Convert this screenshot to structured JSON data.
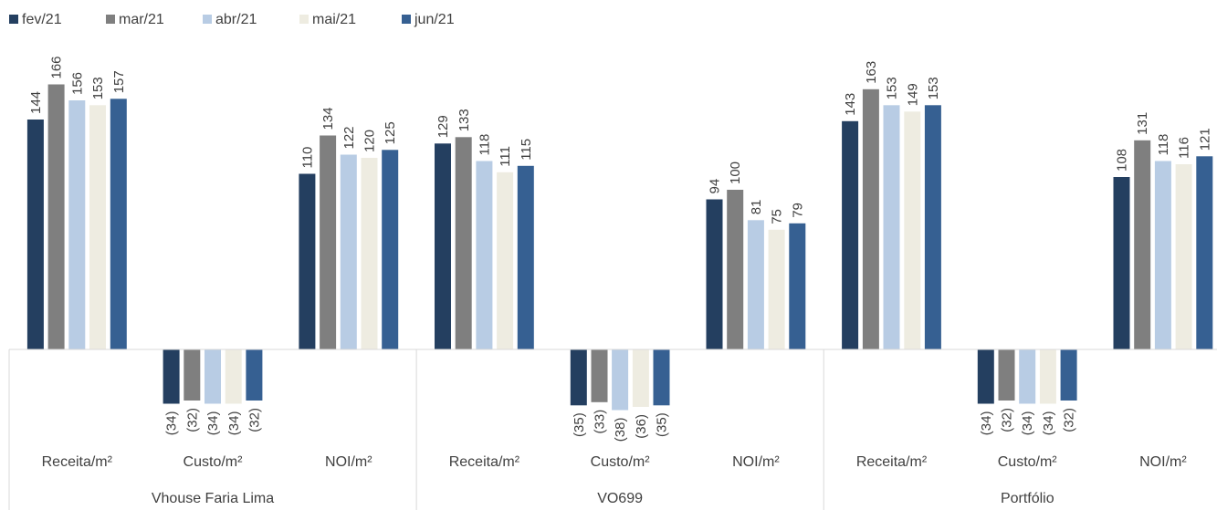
{
  "chart_data": {
    "type": "bar",
    "title": "",
    "xlabel": "",
    "ylabel": "",
    "legend_position": "top-left",
    "grid": false,
    "ylim": [
      -45,
      175
    ],
    "groups": [
      {
        "name": "Vhouse Faria Lima",
        "categories": [
          "Receita/m²",
          "Custo/m²",
          "NOI/m²"
        ]
      },
      {
        "name": "VO699",
        "categories": [
          "Receita/m²",
          "Custo/m²",
          "NOI/m²"
        ]
      },
      {
        "name": "Portfólio",
        "categories": [
          "Receita/m²",
          "Custo/m²",
          "NOI/m²"
        ]
      }
    ],
    "series": [
      {
        "name": "fev/21",
        "color": "#243f60",
        "values": [
          144,
          -34,
          110,
          129,
          -35,
          94,
          143,
          -34,
          108
        ]
      },
      {
        "name": "mar/21",
        "color": "#7f7f7f",
        "values": [
          166,
          -32,
          134,
          133,
          -33,
          100,
          163,
          -32,
          131
        ]
      },
      {
        "name": "abr/21",
        "color": "#b8cce4",
        "values": [
          156,
          -34,
          122,
          118,
          -38,
          81,
          153,
          -34,
          118
        ]
      },
      {
        "name": "mai/21",
        "color": "#eeece1",
        "values": [
          153,
          -34,
          120,
          111,
          -36,
          75,
          149,
          -34,
          116
        ]
      },
      {
        "name": "jun/21",
        "color": "#366092",
        "values": [
          157,
          -32,
          125,
          115,
          -35,
          79,
          153,
          -32,
          121
        ]
      }
    ]
  }
}
